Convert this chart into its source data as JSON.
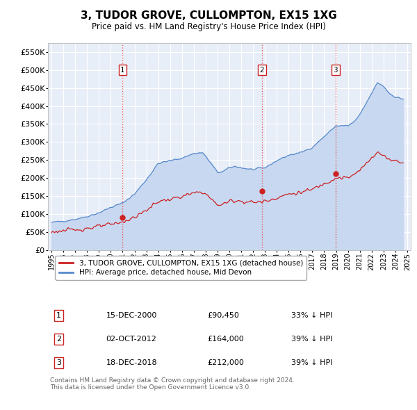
{
  "title": "3, TUDOR GROVE, CULLOMPTON, EX15 1XG",
  "subtitle": "Price paid vs. HM Land Registry's House Price Index (HPI)",
  "plot_bg_color": "#e8eef8",
  "ylim": [
    0,
    575000
  ],
  "yticks": [
    0,
    50000,
    100000,
    150000,
    200000,
    250000,
    300000,
    350000,
    400000,
    450000,
    500000,
    550000
  ],
  "ytick_labels": [
    "£0",
    "£50K",
    "£100K",
    "£150K",
    "£200K",
    "£250K",
    "£300K",
    "£350K",
    "£400K",
    "£450K",
    "£500K",
    "£550K"
  ],
  "xlim_start": 1994.7,
  "xlim_end": 2025.3,
  "sale_dates": [
    2001.0,
    2012.75,
    2018.96
  ],
  "sale_prices": [
    90450,
    164000,
    212000
  ],
  "sale_labels": [
    "1",
    "2",
    "3"
  ],
  "vline_color": "#e05050",
  "sale_marker_color": "#cc2222",
  "hpi_line_color": "#5588cc",
  "hpi_fill_color": "#c8d8f0",
  "price_line_color": "#cc2222",
  "legend_label_price": "3, TUDOR GROVE, CULLOMPTON, EX15 1XG (detached house)",
  "legend_label_hpi": "HPI: Average price, detached house, Mid Devon",
  "table_data": [
    [
      "1",
      "15-DEC-2000",
      "£90,450",
      "33% ↓ HPI"
    ],
    [
      "2",
      "02-OCT-2012",
      "£164,000",
      "39% ↓ HPI"
    ],
    [
      "3",
      "18-DEC-2018",
      "£212,000",
      "39% ↓ HPI"
    ]
  ],
  "footer": "Contains HM Land Registry data © Crown copyright and database right 2024.\nThis data is licensed under the Open Government Licence v3.0."
}
